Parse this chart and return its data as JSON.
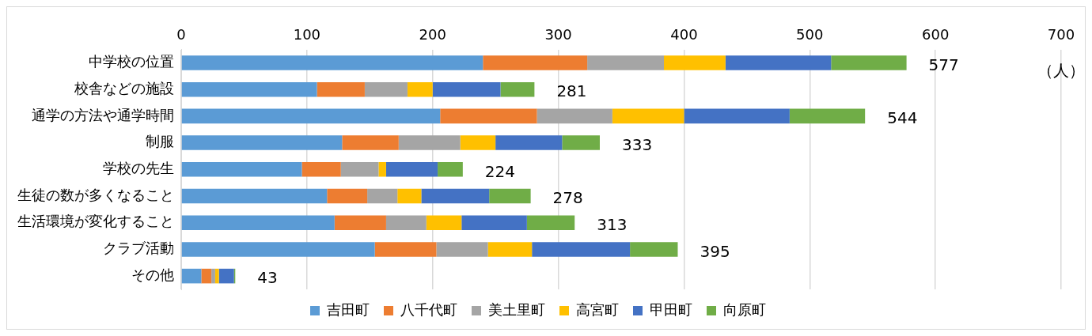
{
  "chart_data": {
    "type": "bar",
    "orientation": "horizontal",
    "stacked": true,
    "categories": [
      "中学校の位置",
      "校舎などの施設",
      "通学の方法や通学時間",
      "制服",
      "学校の先生",
      "生徒の数が多くなること",
      "生活環境が変化すること",
      "クラブ活動",
      "その他"
    ],
    "series": [
      {
        "name": "吉田町",
        "color": "#5b9bd5",
        "values": [
          240,
          108,
          206,
          128,
          96,
          116,
          122,
          154,
          16
        ]
      },
      {
        "name": "八千代町",
        "color": "#ed7d31",
        "values": [
          83,
          38,
          77,
          45,
          31,
          32,
          41,
          49,
          8
        ]
      },
      {
        "name": "美土里町",
        "color": "#a5a5a5",
        "values": [
          61,
          34,
          60,
          49,
          30,
          24,
          32,
          41,
          3
        ]
      },
      {
        "name": "高宮町",
        "color": "#ffc000",
        "values": [
          49,
          20,
          57,
          28,
          6,
          19,
          28,
          35,
          3
        ]
      },
      {
        "name": "甲田町",
        "color": "#4472c4",
        "values": [
          84,
          54,
          84,
          53,
          41,
          54,
          52,
          78,
          12
        ]
      },
      {
        "name": "向原町",
        "color": "#70ad47",
        "values": [
          60,
          27,
          60,
          30,
          20,
          33,
          38,
          38,
          1
        ]
      }
    ],
    "totals": [
      "577",
      "281",
      "544",
      "333",
      "224",
      "278",
      "313",
      "395",
      "43"
    ],
    "xlabel": "（人）",
    "xlim": [
      0,
      700
    ],
    "xticks": [
      0,
      100,
      200,
      300,
      400,
      500,
      600,
      700
    ],
    "grid": "x",
    "legend": "bottom"
  }
}
